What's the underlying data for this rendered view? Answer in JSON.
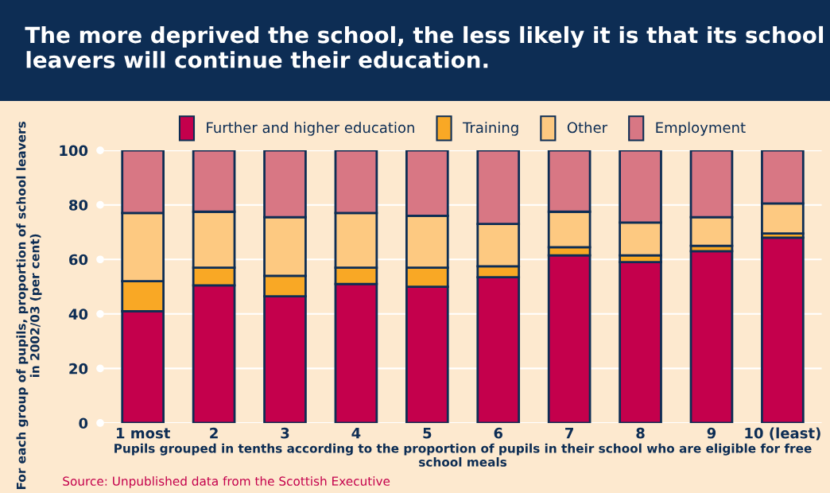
{
  "chart_data": {
    "type": "bar",
    "stacked": true,
    "title": "The more deprived the school, the less likely it is that its school leavers will continue their education.",
    "categories": [
      "1 most",
      "2",
      "3",
      "4",
      "5",
      "6",
      "7",
      "8",
      "9",
      "10 (least)"
    ],
    "series": [
      {
        "name": "Further and higher education",
        "color": "#c4004c",
        "values": [
          41,
          50.5,
          46.5,
          51,
          50,
          53.5,
          61.5,
          59,
          63,
          68
        ]
      },
      {
        "name": "Training",
        "color": "#f9a825",
        "values": [
          11,
          6.5,
          7.5,
          6,
          7,
          4,
          3,
          2.5,
          2,
          1.5
        ]
      },
      {
        "name": "Other",
        "color": "#fdc981",
        "values": [
          25,
          20.5,
          21.5,
          20,
          19,
          15.5,
          13,
          12,
          10.5,
          11
        ]
      },
      {
        "name": "Employment",
        "color": "#d87784",
        "values": [
          23,
          22.5,
          24.5,
          23,
          24,
          27,
          22.5,
          26.5,
          24.5,
          19.5
        ]
      }
    ],
    "ylim": [
      0,
      100
    ],
    "yticks": [
      0,
      20,
      40,
      60,
      80,
      100
    ],
    "grid": "y",
    "legend": "top",
    "ylabel": "For each group of pupils, proportion of school leavers in 2002/03 (per cent)",
    "xlabel": "Pupils grouped in tenths according to the proportion of pupils in their school who are eligible for free school meals",
    "annotations": [
      "Source: Unpublished data from the Scottish Executive"
    ]
  }
}
